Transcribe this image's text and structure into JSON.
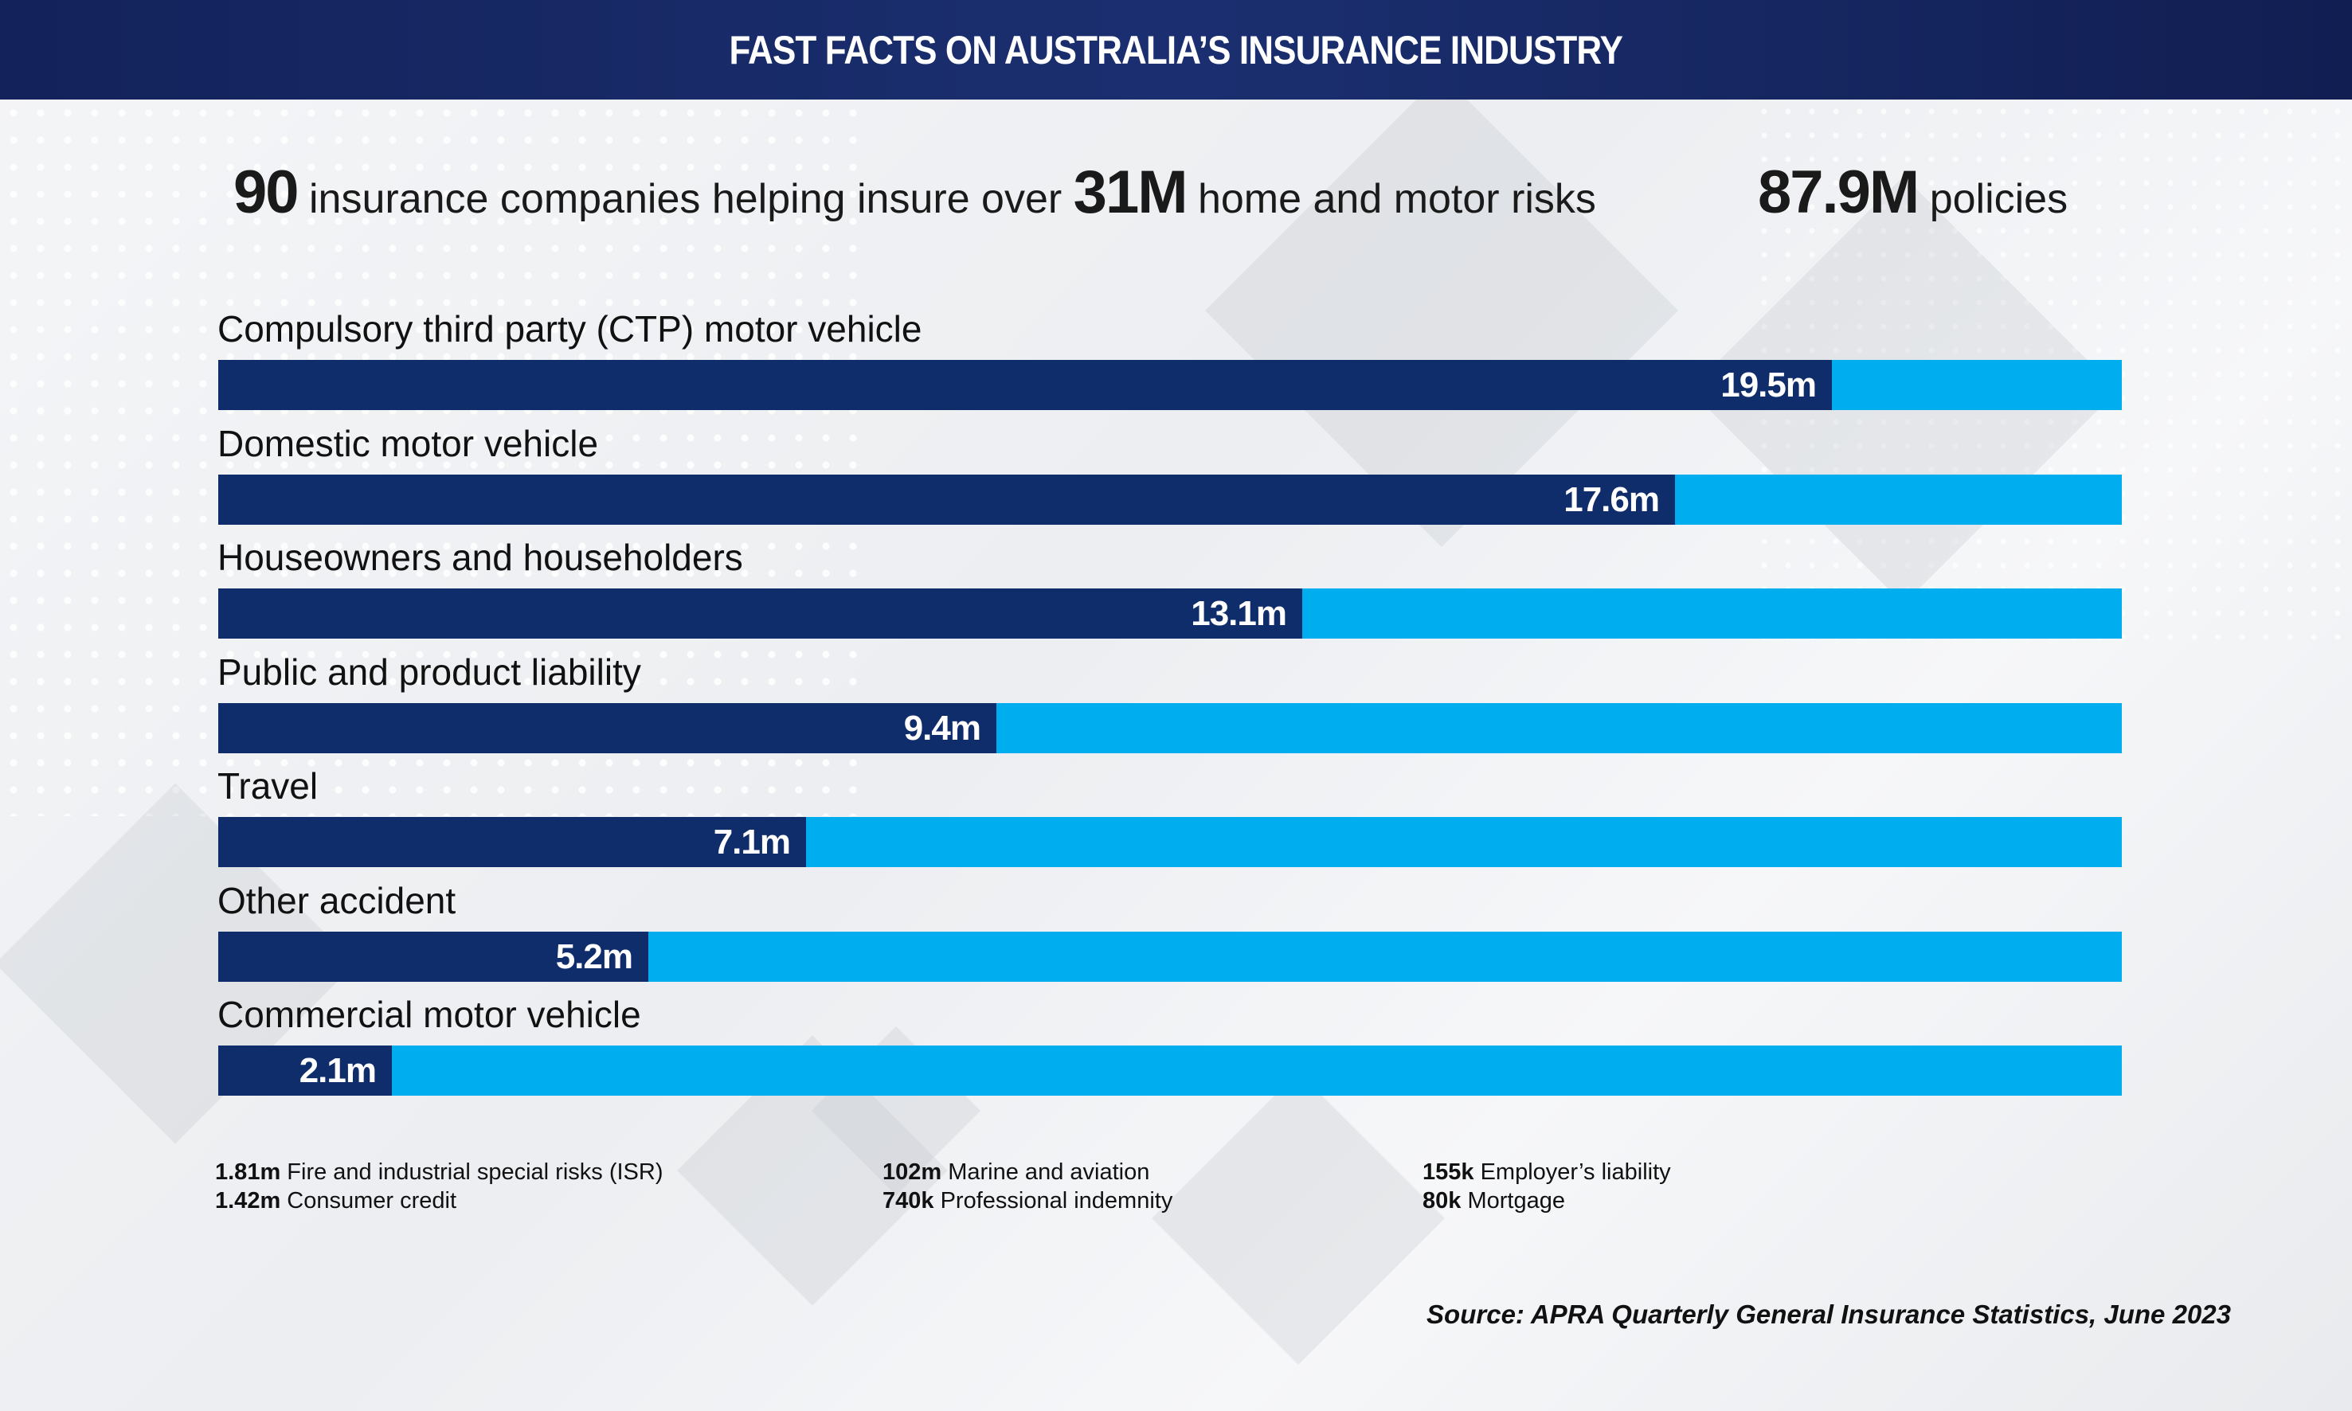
{
  "header": {
    "title": "FAST FACTS ON AUSTRALIA’S INSURANCE INDUSTRY"
  },
  "stats": {
    "companies_value": "90",
    "companies_text": "insurance companies helping insure over",
    "risks_value": "31M",
    "risks_text": "home and motor risks",
    "policies_value": "87.9M",
    "policies_text": "policies"
  },
  "chart_data": {
    "type": "bar",
    "orientation": "horizontal",
    "title": "",
    "unit": "million policies",
    "xlim": [
      0,
      23
    ],
    "categories": [
      "Compulsory third party (CTP) motor vehicle",
      "Domestic motor vehicle",
      "Houseowners and householders",
      "Public and product liability",
      "Travel",
      "Other accident",
      "Commercial motor vehicle"
    ],
    "values": [
      19.5,
      17.6,
      13.1,
      9.4,
      7.1,
      5.2,
      2.1
    ],
    "value_labels": [
      "19.5m",
      "17.6m",
      "13.1m",
      "9.4m",
      "7.1m",
      "5.2m",
      "2.1m"
    ],
    "colors": {
      "fill": "#0f2c6b",
      "track": "#00aeef"
    }
  },
  "minor_lines": [
    {
      "value": "1.81m",
      "label": "Fire and industrial special risks (ISR)"
    },
    {
      "value": "1.42m",
      "label": "Consumer credit"
    },
    {
      "value": "102m",
      "label": "Marine and aviation"
    },
    {
      "value": "740k",
      "label": "Professional indemnity"
    },
    {
      "value": "155k",
      "label": "Employer’s liability"
    },
    {
      "value": "80k",
      "label": "Mortgage"
    }
  ],
  "source": "Source: APRA Quarterly General Insurance Statistics, June 2023"
}
